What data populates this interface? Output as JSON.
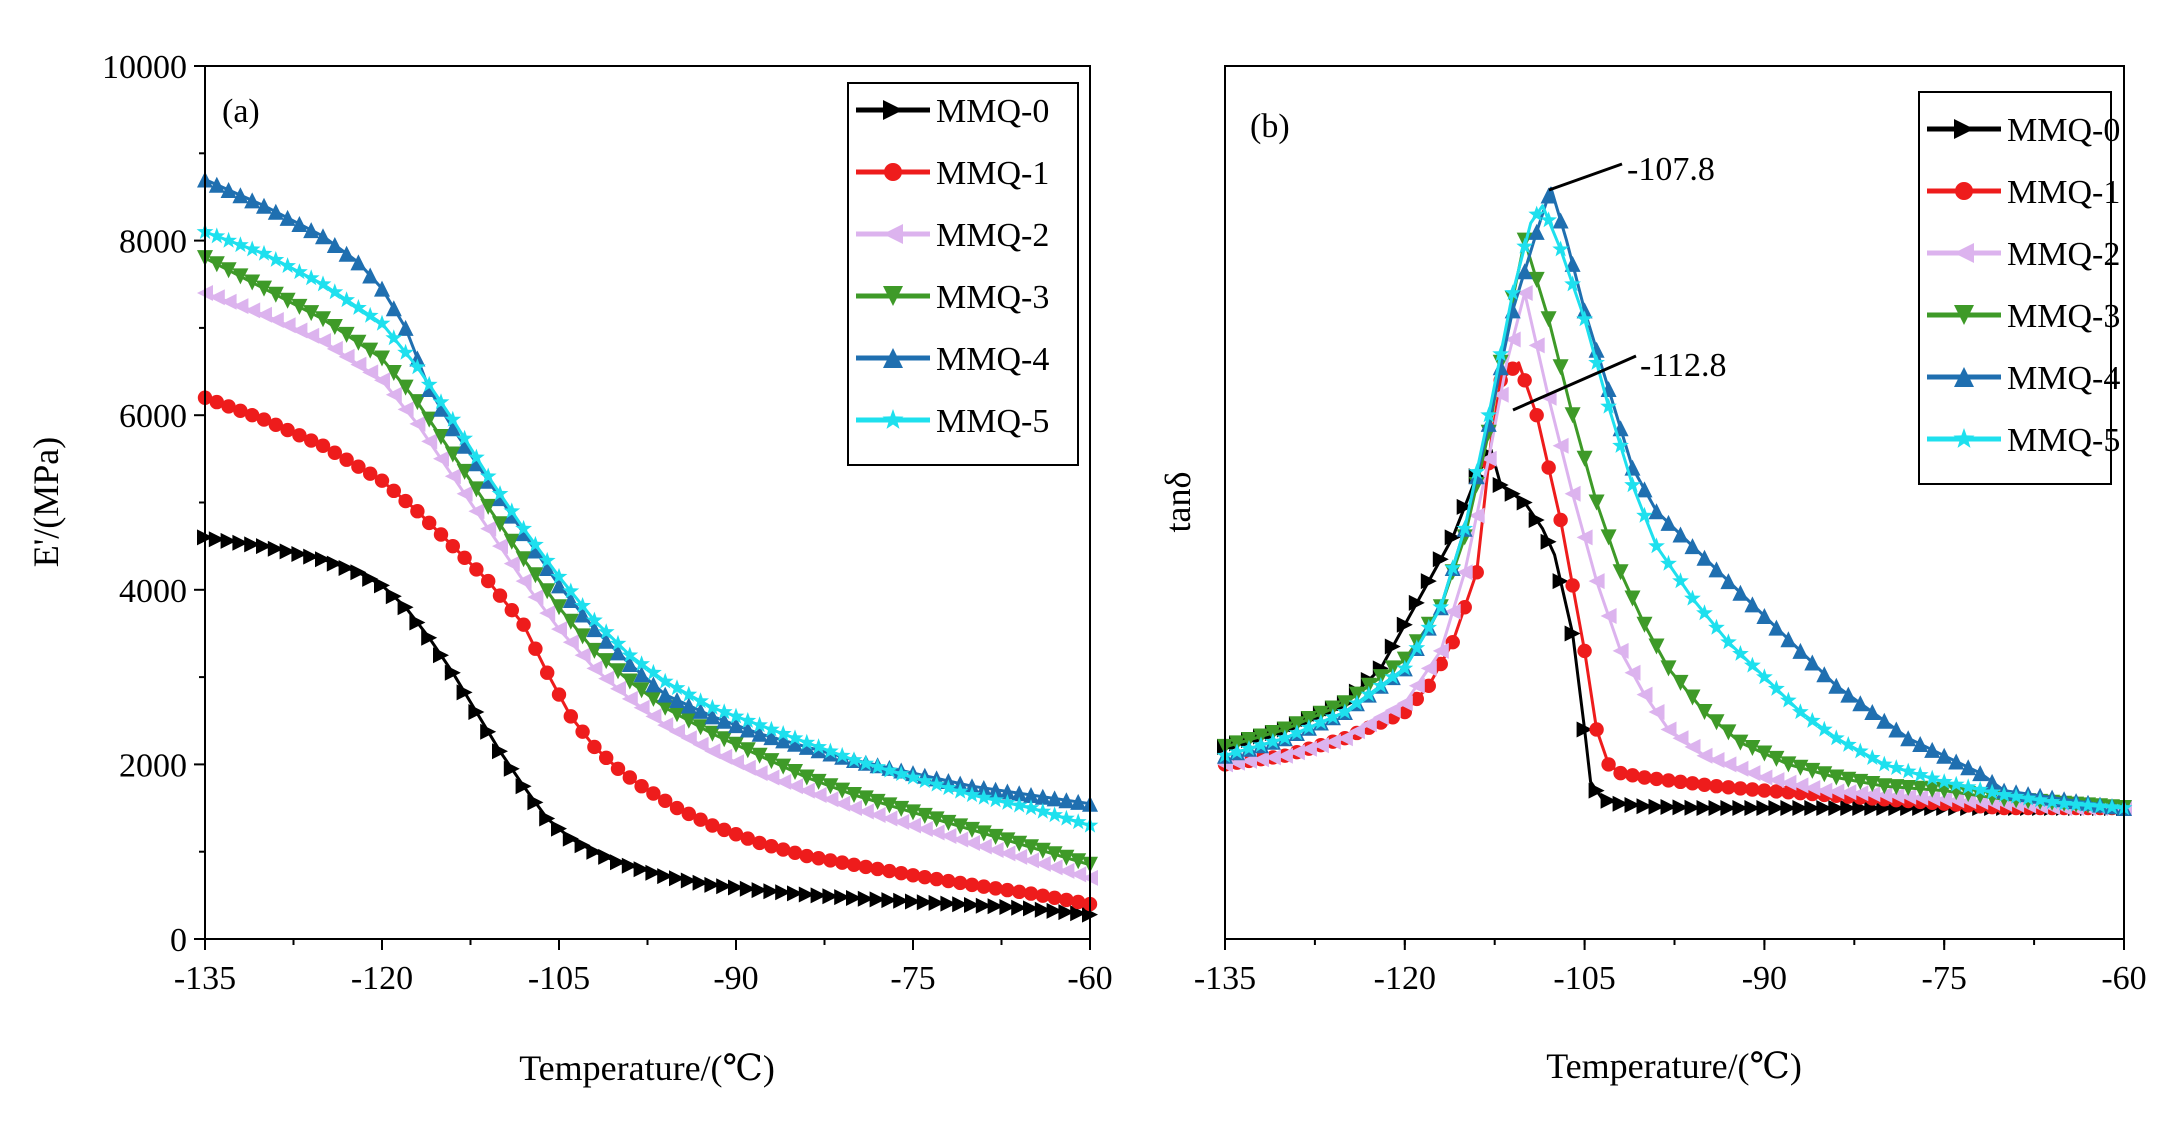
{
  "chart_data": [
    {
      "type": "line",
      "panel_label": "(a)",
      "xlabel": "Temperature/(℃)",
      "ylabel": "E'/(MPa)",
      "xlim": [
        -135,
        -60
      ],
      "ylim": [
        0,
        10000
      ],
      "xticks": [
        -135,
        -120,
        -105,
        -90,
        -75,
        -60
      ],
      "yticks": [
        0,
        2000,
        4000,
        6000,
        8000,
        10000
      ],
      "legend_position": "top-right",
      "series": [
        {
          "name": "MMQ-0",
          "color": "#000000",
          "marker": "triangle-right",
          "x": [
            -135,
            -130,
            -125,
            -122,
            -120,
            -118,
            -116,
            -114,
            -112,
            -110,
            -108,
            -106,
            -104,
            -102,
            -100,
            -96,
            -92,
            -88,
            -84,
            -80,
            -75,
            -70,
            -65,
            -60
          ],
          "y": [
            4600,
            4500,
            4350,
            4200,
            4050,
            3800,
            3450,
            3050,
            2600,
            2150,
            1750,
            1380,
            1150,
            1000,
            880,
            720,
            620,
            560,
            510,
            470,
            430,
            390,
            350,
            280
          ]
        },
        {
          "name": "MMQ-1",
          "color": "#ee1c1c",
          "marker": "circle",
          "x": [
            -135,
            -130,
            -125,
            -120,
            -117,
            -114,
            -111,
            -108,
            -106,
            -104,
            -102,
            -100,
            -98,
            -95,
            -92,
            -88,
            -84,
            -80,
            -75,
            -70,
            -65,
            -60
          ],
          "y": [
            6200,
            5950,
            5650,
            5250,
            4900,
            4500,
            4100,
            3600,
            3050,
            2550,
            2200,
            1950,
            1750,
            1500,
            1300,
            1100,
            950,
            850,
            730,
            620,
            520,
            400
          ]
        },
        {
          "name": "MMQ-2",
          "color": "#dcb3ee",
          "marker": "triangle-left",
          "x": [
            -135,
            -130,
            -125,
            -120,
            -117,
            -114,
            -111,
            -108,
            -105,
            -102,
            -99,
            -96,
            -92,
            -88,
            -84,
            -80,
            -75,
            -70,
            -65,
            -60
          ],
          "y": [
            7400,
            7150,
            6850,
            6400,
            5900,
            5300,
            4700,
            4100,
            3550,
            3100,
            2750,
            2450,
            2150,
            1900,
            1700,
            1500,
            1300,
            1100,
            900,
            700
          ]
        },
        {
          "name": "MMQ-3",
          "color": "#3e9a28",
          "marker": "triangle-down",
          "x": [
            -135,
            -130,
            -125,
            -120,
            -117,
            -114,
            -111,
            -108,
            -105,
            -102,
            -99,
            -96,
            -92,
            -88,
            -84,
            -80,
            -75,
            -70,
            -65,
            -60
          ],
          "y": [
            7800,
            7450,
            7100,
            6650,
            6150,
            5550,
            4950,
            4350,
            3800,
            3300,
            2950,
            2650,
            2350,
            2100,
            1850,
            1650,
            1450,
            1250,
            1050,
            850
          ]
        },
        {
          "name": "MMQ-4",
          "color": "#1f6fb0",
          "marker": "triangle-up",
          "x": [
            -135,
            -130,
            -125,
            -122,
            -120,
            -118,
            -116,
            -114,
            -111,
            -108,
            -105,
            -102,
            -99,
            -96,
            -92,
            -88,
            -84,
            -80,
            -75,
            -70,
            -65,
            -60
          ],
          "y": [
            8700,
            8400,
            8050,
            7750,
            7450,
            7000,
            6300,
            5850,
            5250,
            4650,
            4050,
            3550,
            3150,
            2800,
            2550,
            2350,
            2200,
            2050,
            1900,
            1750,
            1650,
            1550
          ]
        },
        {
          "name": "MMQ-5",
          "color": "#1ee0ee",
          "marker": "star",
          "x": [
            -135,
            -130,
            -125,
            -120,
            -117,
            -114,
            -111,
            -108,
            -105,
            -102,
            -99,
            -96,
            -92,
            -88,
            -84,
            -80,
            -75,
            -70,
            -65,
            -60
          ],
          "y": [
            8100,
            7850,
            7500,
            7050,
            6550,
            5950,
            5300,
            4700,
            4150,
            3650,
            3250,
            2950,
            2650,
            2450,
            2250,
            2050,
            1850,
            1650,
            1500,
            1300
          ]
        }
      ]
    },
    {
      "type": "line",
      "panel_label": "(b)",
      "xlabel": "Temperature/(℃)",
      "ylabel": "tanδ",
      "xlim": [
        -135,
        -60
      ],
      "ylim": [
        0,
        1
      ],
      "xticks": [
        -135,
        -120,
        -105,
        -90,
        -75,
        -60
      ],
      "y_tick_labels_shown": false,
      "legend_position": "top-right",
      "annotations": [
        {
          "text": "-107.8",
          "x": -107.8
        },
        {
          "text": "-112.8",
          "x": -112.8
        }
      ],
      "series": [
        {
          "name": "MMQ-0",
          "color": "#000000",
          "marker": "triangle-right",
          "x": [
            -135,
            -130,
            -125,
            -122,
            -120,
            -118,
            -116,
            -114,
            -112.8,
            -112,
            -110,
            -108.5,
            -107.5,
            -106,
            -105,
            -104.5,
            -103.5,
            -102,
            -100,
            -95,
            -90,
            -80,
            -70,
            -60
          ],
          "y": [
            0.22,
            0.24,
            0.27,
            0.31,
            0.36,
            0.41,
            0.46,
            0.53,
            0.56,
            0.52,
            0.5,
            0.47,
            0.44,
            0.35,
            0.24,
            0.18,
            0.16,
            0.155,
            0.152,
            0.15,
            0.15,
            0.15,
            0.15,
            0.15
          ]
        },
        {
          "name": "MMQ-1",
          "color": "#ee1c1c",
          "marker": "circle",
          "x": [
            -135,
            -130,
            -125,
            -120,
            -118,
            -116,
            -114,
            -112.8,
            -112,
            -110.5,
            -109,
            -107,
            -105,
            -104,
            -103,
            -102,
            -100,
            -97,
            -94,
            -90,
            -85,
            -80,
            -75,
            -70,
            -65,
            -60
          ],
          "y": [
            0.2,
            0.21,
            0.23,
            0.26,
            0.29,
            0.34,
            0.42,
            0.57,
            0.64,
            0.66,
            0.6,
            0.48,
            0.33,
            0.24,
            0.2,
            0.19,
            0.185,
            0.18,
            0.175,
            0.17,
            0.165,
            0.16,
            0.155,
            0.15,
            0.15,
            0.15
          ]
        },
        {
          "name": "MMQ-2",
          "color": "#dcb3ee",
          "marker": "triangle-left",
          "x": [
            -135,
            -130,
            -125,
            -120,
            -117,
            -115,
            -113,
            -111.5,
            -110,
            -108,
            -106,
            -104,
            -102,
            -100,
            -98,
            -95,
            -90,
            -85,
            -80,
            -75,
            -70,
            -65,
            -60
          ],
          "y": [
            0.2,
            0.21,
            0.23,
            0.27,
            0.33,
            0.42,
            0.55,
            0.66,
            0.74,
            0.62,
            0.51,
            0.41,
            0.33,
            0.28,
            0.24,
            0.21,
            0.185,
            0.17,
            0.165,
            0.16,
            0.155,
            0.15,
            0.15
          ]
        },
        {
          "name": "MMQ-3",
          "color": "#3e9a28",
          "marker": "triangle-down",
          "x": [
            -135,
            -130,
            -125,
            -120,
            -117,
            -115,
            -113,
            -111.5,
            -110,
            -108,
            -106,
            -104,
            -102,
            -100,
            -98,
            -95,
            -92,
            -88,
            -84,
            -80,
            -75,
            -70,
            -65,
            -60
          ],
          "y": [
            0.22,
            0.24,
            0.27,
            0.32,
            0.38,
            0.46,
            0.58,
            0.7,
            0.8,
            0.71,
            0.6,
            0.5,
            0.42,
            0.36,
            0.31,
            0.26,
            0.225,
            0.2,
            0.185,
            0.175,
            0.17,
            0.16,
            0.155,
            0.15
          ]
        },
        {
          "name": "MMQ-4",
          "color": "#1f6fb0",
          "marker": "triangle-up",
          "x": [
            -135,
            -130,
            -125,
            -120,
            -117,
            -115,
            -113,
            -111,
            -109,
            -107.8,
            -106.5,
            -105,
            -103,
            -101,
            -99,
            -96,
            -93,
            -90,
            -87,
            -84,
            -81,
            -78,
            -75,
            -72,
            -70,
            -65,
            -60
          ],
          "y": [
            0.21,
            0.23,
            0.26,
            0.31,
            0.38,
            0.47,
            0.59,
            0.72,
            0.81,
            0.86,
            0.8,
            0.72,
            0.63,
            0.54,
            0.49,
            0.45,
            0.41,
            0.37,
            0.33,
            0.29,
            0.26,
            0.23,
            0.21,
            0.19,
            0.17,
            0.16,
            0.15
          ]
        },
        {
          "name": "MMQ-5",
          "color": "#1ee0ee",
          "marker": "star",
          "x": [
            -135,
            -130,
            -125,
            -120,
            -117,
            -115,
            -113,
            -111,
            -109.5,
            -108.5,
            -107,
            -105,
            -103,
            -101,
            -99,
            -96,
            -93,
            -90,
            -87,
            -84,
            -80,
            -75,
            -70,
            -65,
            -60
          ],
          "y": [
            0.21,
            0.23,
            0.26,
            0.31,
            0.38,
            0.47,
            0.6,
            0.74,
            0.82,
            0.84,
            0.79,
            0.71,
            0.61,
            0.52,
            0.45,
            0.39,
            0.34,
            0.3,
            0.26,
            0.23,
            0.2,
            0.18,
            0.165,
            0.155,
            0.15
          ]
        }
      ]
    }
  ]
}
